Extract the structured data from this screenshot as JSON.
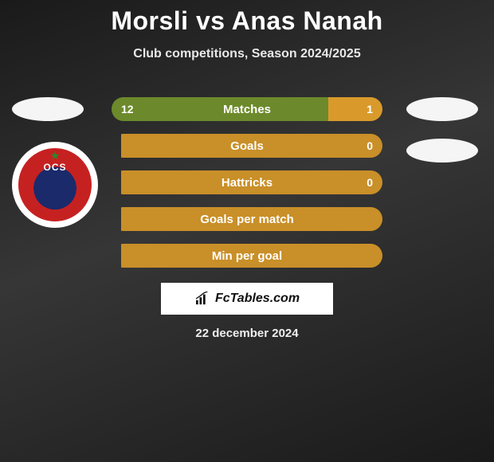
{
  "title": "Morsli vs Anas Nanah",
  "subtitle": "Club competitions, Season 2024/2025",
  "date": "22 december 2024",
  "watermark": "FcTables.com",
  "colors": {
    "left_bar": "#6c8a2b",
    "right_bar": "#d99a2b",
    "neutral_bar": "#c98f28"
  },
  "bars": [
    {
      "label": "Matches",
      "left_value": "12",
      "right_value": "1",
      "left_pct": 80,
      "right_pct": 20,
      "show_values": true
    },
    {
      "label": "Goals",
      "left_value": "",
      "right_value": "0",
      "left_pct": 0,
      "right_pct": 100,
      "show_values": true
    },
    {
      "label": "Hattricks",
      "left_value": "",
      "right_value": "0",
      "left_pct": 0,
      "right_pct": 100,
      "show_values": true
    },
    {
      "label": "Goals per match",
      "left_value": "",
      "right_value": "",
      "left_pct": 0,
      "right_pct": 100,
      "show_values": false
    },
    {
      "label": "Min per goal",
      "left_value": "",
      "right_value": "",
      "left_pct": 0,
      "right_pct": 100,
      "show_values": false
    }
  ]
}
